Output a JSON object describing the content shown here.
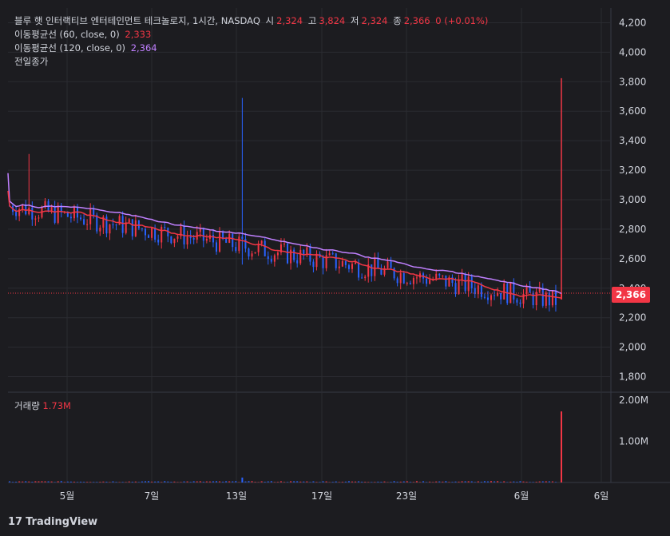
{
  "header": {
    "symbol_title": "블루 햇 인터랙티브 엔터테인먼트 테크놀로지, 1시간, NASDAQ",
    "open_label": "시",
    "open_value": "2,324",
    "high_label": "고",
    "high_value": "3,824",
    "low_label": "저",
    "low_value": "2,324",
    "close_label": "종",
    "close_value": "2,366",
    "change": "0 (+0.01%)",
    "ma60_label": "이동평균선 (60, close, 0)",
    "ma60_value": "2,333",
    "ma120_label": "이동평균선 (120, close, 0)",
    "ma120_value": "2,364",
    "prev_close_label": "전일종가"
  },
  "volume_panel": {
    "label": "거래량",
    "value": "1.73M"
  },
  "last_price_tag": "2,366",
  "branding": {
    "name": "TradingView"
  },
  "colors": {
    "background": "#1c1c20",
    "up": "#f23645",
    "down": "#2962ff",
    "ma60": "#f23645",
    "ma120": "#c080ff",
    "grid": "#2a2b31"
  },
  "chart_data": {
    "type": "candlestick",
    "price_axis": {
      "ylim": [
        1700,
        4300
      ],
      "ticks": [
        "4,200",
        "4,000",
        "3,800",
        "3,600",
        "3,400",
        "3,200",
        "3,000",
        "2,800",
        "2,600",
        "2,400",
        "2,200",
        "2,000",
        "1,800"
      ]
    },
    "volume_axis": {
      "ticks": [
        "2.00M",
        "1.00M"
      ]
    },
    "x_ticks": [
      "5월",
      "7일",
      "13일",
      "17일",
      "23일",
      "6월",
      "6일"
    ],
    "series": [
      {
        "name": "이동평균선 (60, close, 0)",
        "last": 2333
      },
      {
        "name": "이동평균선 (120, close, 0)",
        "last": 2364
      }
    ],
    "last_close": 2366,
    "last_high": 3824,
    "last_low": 2324,
    "last_volume": "1.73M",
    "prev_close_line": 2366
  }
}
